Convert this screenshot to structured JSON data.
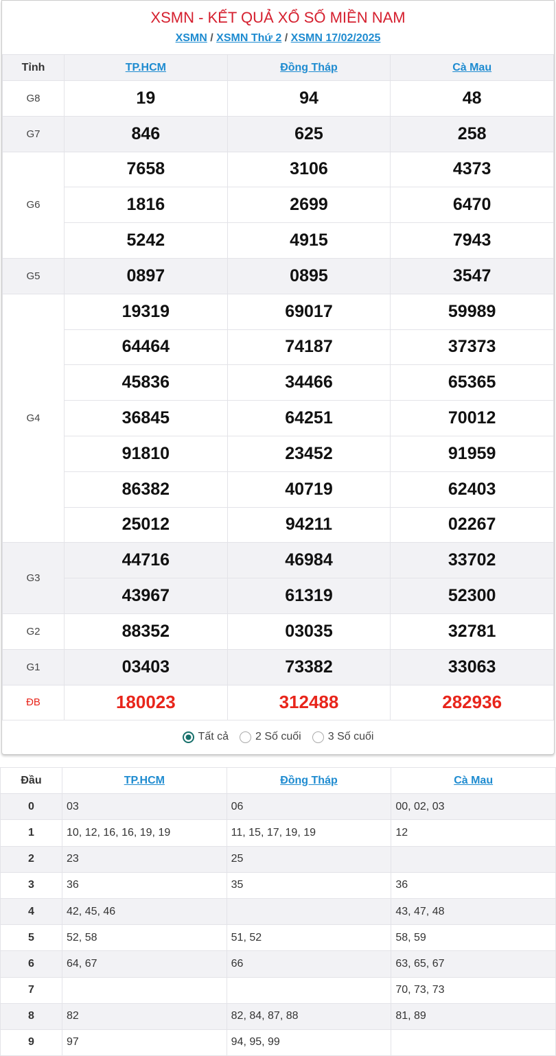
{
  "header": {
    "title": "XSMN - KẾT QUẢ XỔ SỐ MIỀN NAM",
    "breadcrumb": [
      "XSMN",
      "XSMN Thứ 2",
      "XSMN 17/02/2025"
    ]
  },
  "results": {
    "label_header": "Tỉnh",
    "provinces": [
      "TP.HCM",
      "Đồng Tháp",
      "Cà Mau"
    ],
    "prizes": [
      {
        "label": "G8",
        "rows": [
          [
            "19",
            "94",
            "48"
          ]
        ]
      },
      {
        "label": "G7",
        "rows": [
          [
            "846",
            "625",
            "258"
          ]
        ]
      },
      {
        "label": "G6",
        "rows": [
          [
            "7658",
            "3106",
            "4373"
          ],
          [
            "1816",
            "2699",
            "6470"
          ],
          [
            "5242",
            "4915",
            "7943"
          ]
        ]
      },
      {
        "label": "G5",
        "rows": [
          [
            "0897",
            "0895",
            "3547"
          ]
        ]
      },
      {
        "label": "G4",
        "rows": [
          [
            "19319",
            "69017",
            "59989"
          ],
          [
            "64464",
            "74187",
            "37373"
          ],
          [
            "45836",
            "34466",
            "65365"
          ],
          [
            "36845",
            "64251",
            "70012"
          ],
          [
            "91810",
            "23452",
            "91959"
          ],
          [
            "86382",
            "40719",
            "62403"
          ],
          [
            "25012",
            "94211",
            "02267"
          ]
        ]
      },
      {
        "label": "G3",
        "rows": [
          [
            "44716",
            "46984",
            "33702"
          ],
          [
            "43967",
            "61319",
            "52300"
          ]
        ]
      },
      {
        "label": "G2",
        "rows": [
          [
            "88352",
            "03035",
            "32781"
          ]
        ]
      },
      {
        "label": "G1",
        "rows": [
          [
            "03403",
            "73382",
            "33063"
          ]
        ]
      },
      {
        "label": "ĐB",
        "rows": [
          [
            "180023",
            "312488",
            "282936"
          ]
        ]
      }
    ],
    "special_color": "#e8251b"
  },
  "filter": {
    "options": [
      "Tất cả",
      "2 Số cuối",
      "3 Số cuối"
    ],
    "selected": "Tất cả"
  },
  "dau_table": {
    "label_header": "Đầu",
    "provinces": [
      "TP.HCM",
      "Đồng Tháp",
      "Cà Mau"
    ],
    "rows": [
      {
        "k": "0",
        "v": [
          "03",
          "06",
          "00, 02, 03"
        ]
      },
      {
        "k": "1",
        "v": [
          "10, 12, 16, 16, 19, 19",
          "11, 15, 17, 19, 19",
          "12"
        ]
      },
      {
        "k": "2",
        "v": [
          "23",
          "25",
          ""
        ]
      },
      {
        "k": "3",
        "v": [
          "36",
          "35",
          "36"
        ]
      },
      {
        "k": "4",
        "v": [
          "42, 45, 46",
          "",
          "43, 47, 48"
        ]
      },
      {
        "k": "5",
        "v": [
          "52, 58",
          "51, 52",
          "58, 59"
        ]
      },
      {
        "k": "6",
        "v": [
          "64, 67",
          "66",
          "63, 65, 67"
        ]
      },
      {
        "k": "7",
        "v": [
          "",
          "",
          "70, 73, 73"
        ]
      },
      {
        "k": "8",
        "v": [
          "82",
          "82, 84, 87, 88",
          "81, 89"
        ]
      },
      {
        "k": "9",
        "v": [
          "97",
          "94, 95, 99",
          ""
        ]
      }
    ]
  }
}
